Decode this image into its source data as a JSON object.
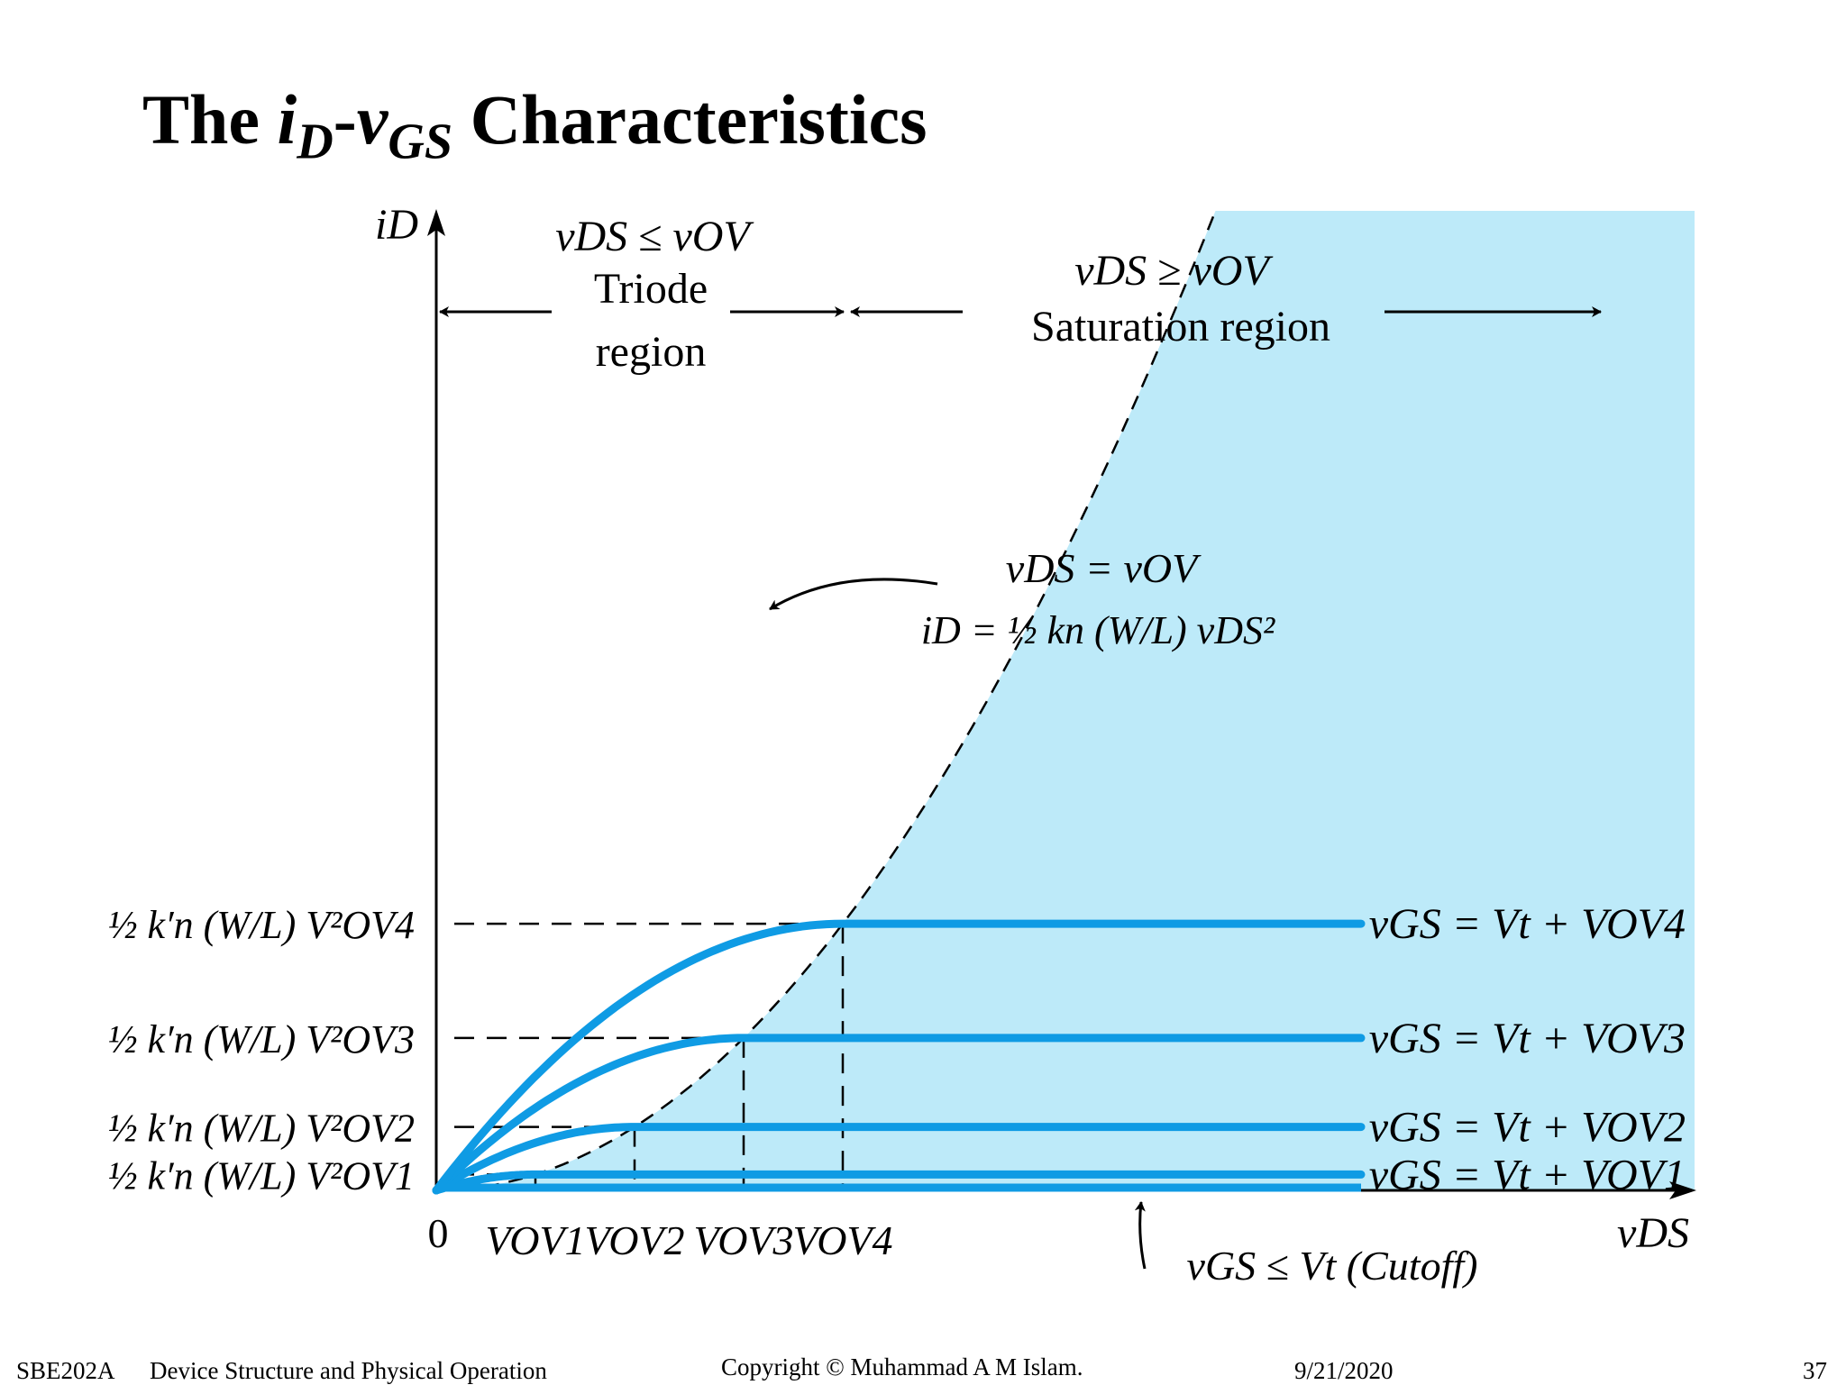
{
  "title": {
    "prefix": "The ",
    "i": "i",
    "i_sub": "D",
    "dash": "-",
    "v": "v",
    "v_sub": "GS",
    "suffix": " Characteristics"
  },
  "regions": {
    "triode_condition": "vDS ≤ vOV",
    "triode_line1": "Triode",
    "triode_line2": "region",
    "saturation_condition": "vDS ≥ vOV",
    "saturation_label": "Saturation region"
  },
  "axes": {
    "y_label": "iD",
    "x_label": "vDS",
    "origin": "0"
  },
  "boundary_annotation": {
    "line1": "vDS = vOV",
    "line2": "iD = ½ kn (W/L) vDS²"
  },
  "cutoff_label": "vGS ≤ Vt (Cutoff)",
  "curves": [
    {
      "y_label": "½ k′n (W/L) V²OV1",
      "curve_label": "vGS = Vt + VOV1",
      "x_label": "VOV1",
      "vov": 1.0
    },
    {
      "y_label": "½ k′n (W/L) V²OV2",
      "curve_label": "vGS = Vt + VOV2",
      "x_label": "VOV2",
      "vov": 2.0
    },
    {
      "y_label": "½ k′n (W/L) V²OV3",
      "curve_label": "vGS = Vt + VOV3",
      "x_label": "VOV3",
      "vov": 3.1
    },
    {
      "y_label": "½ k′n (W/L) V²OV4",
      "curve_label": "vGS = Vt + VOV4",
      "x_label": "VOV4",
      "vov": 4.1
    }
  ],
  "colors": {
    "saturation_fill": "#bdeaf9",
    "curve": "#0f9be4",
    "text": "#000000"
  },
  "footer": {
    "course": "SBE202A",
    "topic": "Device Structure and Physical Operation",
    "copyright": "Copyright © Muhammad A M Islam.",
    "date": "9/21/2020",
    "page": "37"
  }
}
